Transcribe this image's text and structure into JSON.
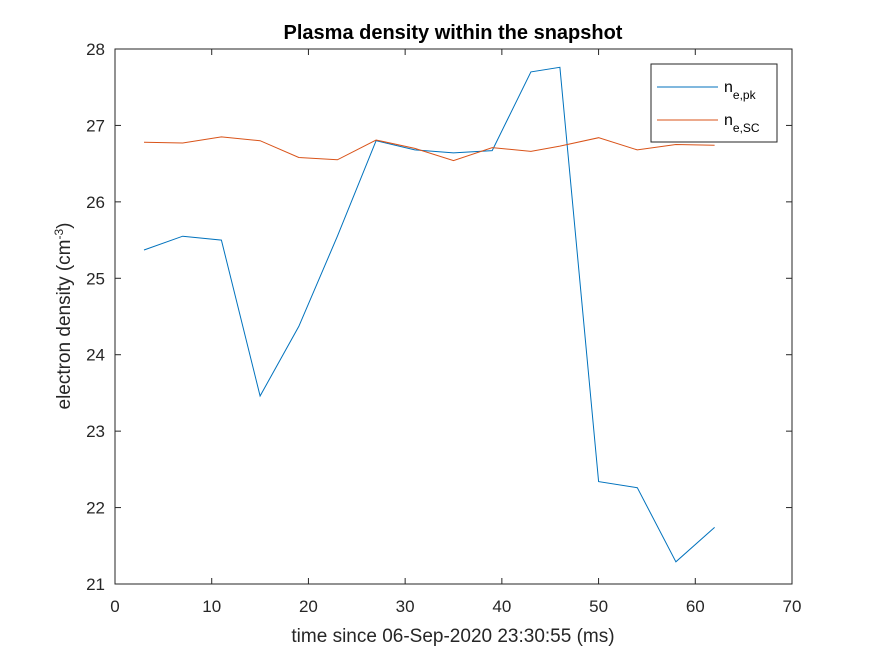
{
  "chart_data": {
    "type": "line",
    "title": "Plasma density within the snapshot",
    "xlabel": "time since 06-Sep-2020 23:30:55 (ms)",
    "ylabel": {
      "main": "electron density (cm",
      "sup": "-3",
      "end": ")"
    },
    "xlim": [
      0,
      70
    ],
    "ylim": [
      21,
      28
    ],
    "xticks": [
      0,
      10,
      20,
      30,
      40,
      50,
      60,
      70
    ],
    "yticks": [
      21,
      22,
      23,
      24,
      25,
      26,
      27,
      28
    ],
    "legend_position": "top-right",
    "series": [
      {
        "name_main": "n",
        "name_sub": "e,pk",
        "color": "#0072BD",
        "x": [
          3,
          7,
          11,
          15,
          19,
          23,
          27,
          31,
          35,
          39,
          43,
          46,
          50,
          54,
          58,
          62
        ],
        "y": [
          25.37,
          25.55,
          25.5,
          23.46,
          24.37,
          25.55,
          26.8,
          26.68,
          26.64,
          26.67,
          27.7,
          27.76,
          22.34,
          22.26,
          21.29,
          21.74
        ]
      },
      {
        "name_main": "n",
        "name_sub": "e,SC",
        "color": "#D95319",
        "x": [
          3,
          7,
          11,
          15,
          19,
          23,
          27,
          31,
          35,
          39,
          43,
          46,
          50,
          54,
          58,
          62
        ],
        "y": [
          26.78,
          26.77,
          26.85,
          26.8,
          26.58,
          26.55,
          26.81,
          26.7,
          26.54,
          26.71,
          26.66,
          26.73,
          26.84,
          26.68,
          26.75,
          26.74
        ]
      }
    ]
  }
}
